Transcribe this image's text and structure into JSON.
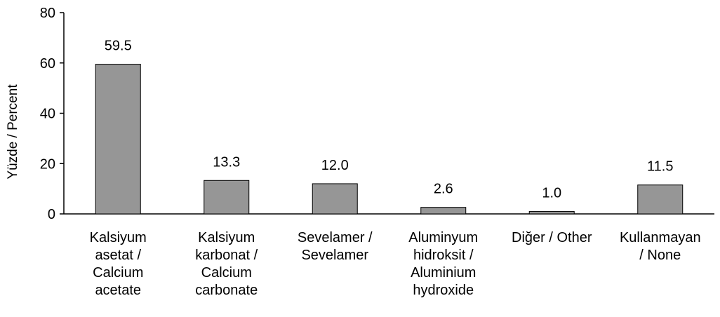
{
  "chart_data": {
    "type": "bar",
    "title": "",
    "xlabel": "",
    "ylabel": "Yüzde / Percent",
    "ylim": [
      0,
      80
    ],
    "yticks": [
      0,
      20,
      40,
      60,
      80
    ],
    "grid": false,
    "legend": "none",
    "categories": [
      [
        "Kalsiyum",
        "asetat /",
        "Calcium",
        "acetate"
      ],
      [
        "Kalsiyum",
        "karbonat /",
        "Calcium",
        "carbonate"
      ],
      [
        "Sevelamer /",
        "Sevelamer"
      ],
      [
        "Aluminyum",
        "hidroksit /",
        "Aluminium",
        "hydroxide"
      ],
      [
        "Diğer / Other"
      ],
      [
        "Kullanmayan",
        "/ None"
      ]
    ],
    "values": [
      59.5,
      13.3,
      12.0,
      2.6,
      1.0,
      11.5
    ],
    "data_labels": [
      "59.5",
      "13.3",
      "12.0",
      "2.6",
      "1.0",
      "11.5"
    ],
    "colors": {
      "bar_fill": "#969696",
      "bar_stroke": "#000000",
      "axis": "#000000",
      "text": "#000000"
    }
  }
}
